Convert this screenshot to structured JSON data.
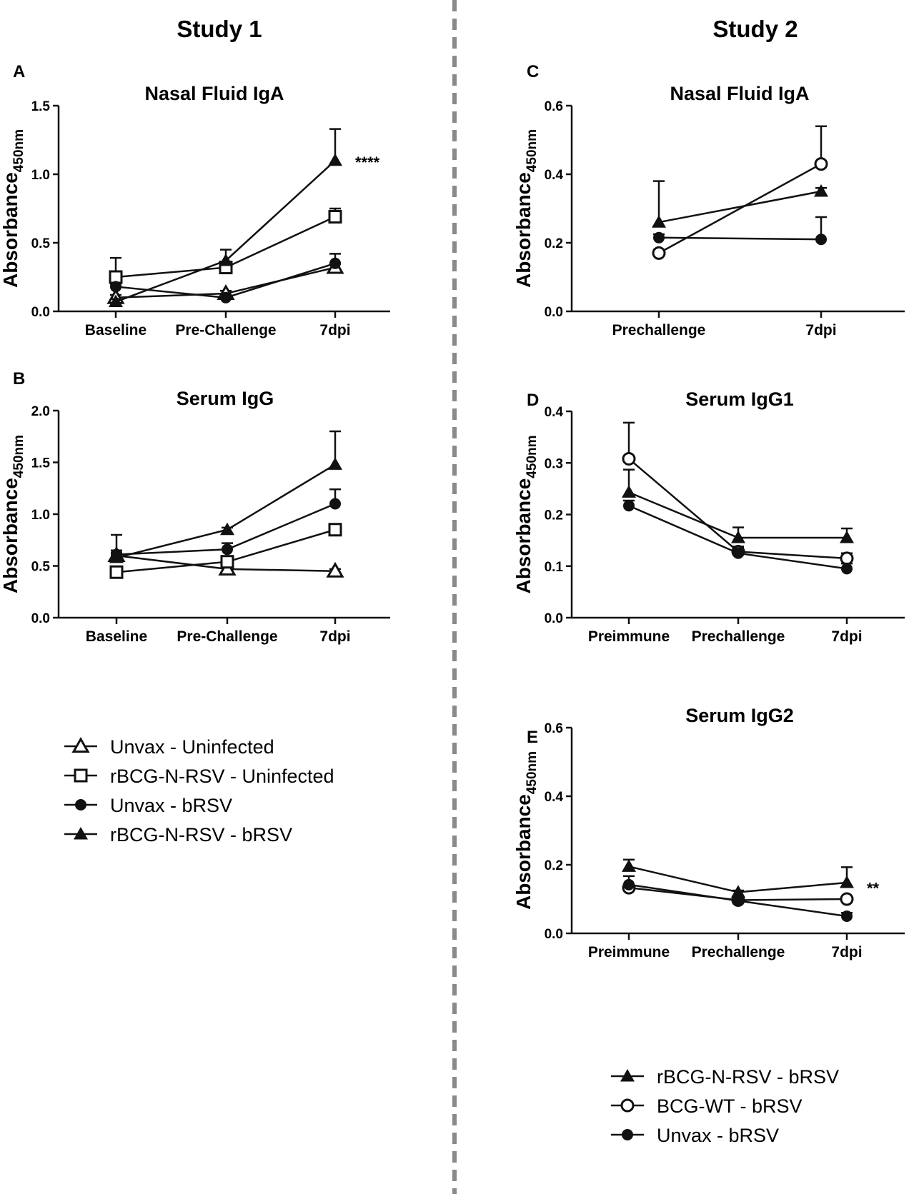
{
  "study_titles": [
    "Study 1",
    "Study 2"
  ],
  "legends": [
    {
      "id": "study1",
      "entries": [
        {
          "label": "Unvax - Uninfected",
          "marker": "triangle-open"
        },
        {
          "label": "rBCG-N-RSV - Uninfected",
          "marker": "square-open"
        },
        {
          "label": "Unvax - bRSV",
          "marker": "circle-filled"
        },
        {
          "label": "rBCG-N-RSV - bRSV",
          "marker": "triangle-filled"
        }
      ]
    },
    {
      "id": "study2",
      "entries": [
        {
          "label": "rBCG-N-RSV - bRSV",
          "marker": "triangle-filled"
        },
        {
          "label": "BCG-WT - bRSV",
          "marker": "circle-open"
        },
        {
          "label": "Unvax - bRSV",
          "marker": "circle-filled"
        }
      ]
    }
  ],
  "chart_data": [
    {
      "panel": "A",
      "type": "line",
      "title": "Nasal Fluid IgA",
      "ylabel": "Absorbance",
      "ylabel_sub": "450nm",
      "categories": [
        "Baseline",
        "Pre-Challenge",
        "7dpi"
      ],
      "ylim": [
        0,
        1.5
      ],
      "yticks": [
        "0.0",
        "0.5",
        "1.0",
        "1.5"
      ],
      "series": [
        {
          "name": "Unvax - Uninfected",
          "marker": "triangle-open",
          "values": [
            0.1,
            0.13,
            0.32
          ],
          "errors": [
            0.02,
            0.02,
            0.03
          ]
        },
        {
          "name": "rBCG-N-RSV - Uninfected",
          "marker": "square-open",
          "values": [
            0.25,
            0.32,
            0.69
          ],
          "errors": [
            0.14,
            0.03,
            0.06
          ]
        },
        {
          "name": "Unvax - bRSV",
          "marker": "circle-filled",
          "values": [
            0.18,
            0.1,
            0.35
          ],
          "errors": [
            0.02,
            0.02,
            0.07
          ]
        },
        {
          "name": "rBCG-N-RSV - bRSV",
          "marker": "triangle-filled",
          "values": [
            0.07,
            0.37,
            1.1
          ],
          "errors": [
            0.02,
            0.08,
            0.23
          ]
        }
      ],
      "annotations": [
        {
          "text": "****",
          "category": "7dpi",
          "y": 1.12
        }
      ]
    },
    {
      "panel": "B",
      "type": "line",
      "title": "Serum IgG",
      "ylabel": "Absorbance",
      "ylabel_sub": "450nm",
      "categories": [
        "Baseline",
        "Pre-Challenge",
        "7dpi"
      ],
      "ylim": [
        0,
        2.0
      ],
      "yticks": [
        "0.0",
        "0.5",
        "1.0",
        "1.5",
        "2.0"
      ],
      "series": [
        {
          "name": "Unvax - Uninfected",
          "marker": "triangle-open",
          "values": [
            0.6,
            0.47,
            0.45
          ],
          "errors": [
            0.05,
            0.03,
            0.02
          ]
        },
        {
          "name": "rBCG-N-RSV - Uninfected",
          "marker": "square-open",
          "values": [
            0.44,
            0.54,
            0.85
          ],
          "errors": [
            0.03,
            0.03,
            0.03
          ]
        },
        {
          "name": "Unvax - bRSV",
          "marker": "circle-filled",
          "values": [
            0.61,
            0.66,
            1.1
          ],
          "errors": [
            0.19,
            0.06,
            0.14
          ]
        },
        {
          "name": "rBCG-N-RSV - bRSV",
          "marker": "triangle-filled",
          "values": [
            0.58,
            0.85,
            1.48
          ],
          "errors": [
            0.05,
            0.02,
            0.32
          ]
        }
      ],
      "annotations": []
    },
    {
      "panel": "C",
      "type": "line",
      "title": "Nasal Fluid IgA",
      "ylabel": "Absorbance",
      "ylabel_sub": "450nm",
      "categories": [
        "Prechallenge",
        "7dpi"
      ],
      "ylim": [
        0,
        0.6
      ],
      "yticks": [
        "0.0",
        "0.2",
        "0.4",
        "0.6"
      ],
      "series": [
        {
          "name": "rBCG-N-RSV - bRSV",
          "marker": "triangle-filled",
          "values": [
            0.26,
            0.35
          ],
          "errors": [
            0.12,
            0.01
          ]
        },
        {
          "name": "BCG-WT - bRSV",
          "marker": "circle-open",
          "values": [
            0.17,
            0.43
          ],
          "errors": [
            0.01,
            0.11
          ]
        },
        {
          "name": "Unvax - bRSV",
          "marker": "circle-filled",
          "values": [
            0.215,
            0.21
          ],
          "errors": [
            0.01,
            0.065
          ]
        }
      ],
      "annotations": []
    },
    {
      "panel": "D",
      "type": "line",
      "title": "Serum IgG1",
      "ylabel": "Absorbance",
      "ylabel_sub": "450nm",
      "categories": [
        "Preimmune",
        "Prechallenge",
        "7dpi"
      ],
      "ylim": [
        0,
        0.4
      ],
      "yticks": [
        "0.0",
        "0.1",
        "0.2",
        "0.3",
        "0.4"
      ],
      "series": [
        {
          "name": "rBCG-N-RSV - bRSV",
          "marker": "triangle-filled",
          "values": [
            0.243,
            0.155,
            0.155
          ],
          "errors": [
            0.044,
            0.02,
            0.018
          ]
        },
        {
          "name": "BCG-WT - bRSV",
          "marker": "circle-open",
          "values": [
            0.308,
            0.128,
            0.115
          ],
          "errors": [
            0.07,
            0.01,
            0.01
          ]
        },
        {
          "name": "Unvax - bRSV",
          "marker": "circle-filled",
          "values": [
            0.217,
            0.125,
            0.095
          ],
          "errors": [
            0.01,
            0.01,
            0.01
          ]
        }
      ],
      "annotations": []
    },
    {
      "panel": "E",
      "type": "line",
      "title": "Serum IgG2",
      "ylabel": "Absorbance",
      "ylabel_sub": "450nm",
      "categories": [
        "Preimmune",
        "Prechallenge",
        "7dpi"
      ],
      "ylim": [
        0,
        0.6
      ],
      "yticks": [
        "0.0",
        "0.2",
        "0.4",
        "0.6"
      ],
      "series": [
        {
          "name": "rBCG-N-RSV - bRSV",
          "marker": "triangle-filled",
          "values": [
            0.195,
            0.12,
            0.148
          ],
          "errors": [
            0.02,
            0.005,
            0.045
          ]
        },
        {
          "name": "BCG-WT - bRSV",
          "marker": "circle-open",
          "values": [
            0.133,
            0.097,
            0.1
          ],
          "errors": [
            0.01,
            0.005,
            0.005
          ]
        },
        {
          "name": "Unvax - bRSV",
          "marker": "circle-filled",
          "values": [
            0.142,
            0.095,
            0.05
          ],
          "errors": [
            0.025,
            0.005,
            0.01
          ]
        }
      ],
      "annotations": [
        {
          "text": "**",
          "category": "7dpi",
          "y": 0.145
        }
      ]
    }
  ]
}
